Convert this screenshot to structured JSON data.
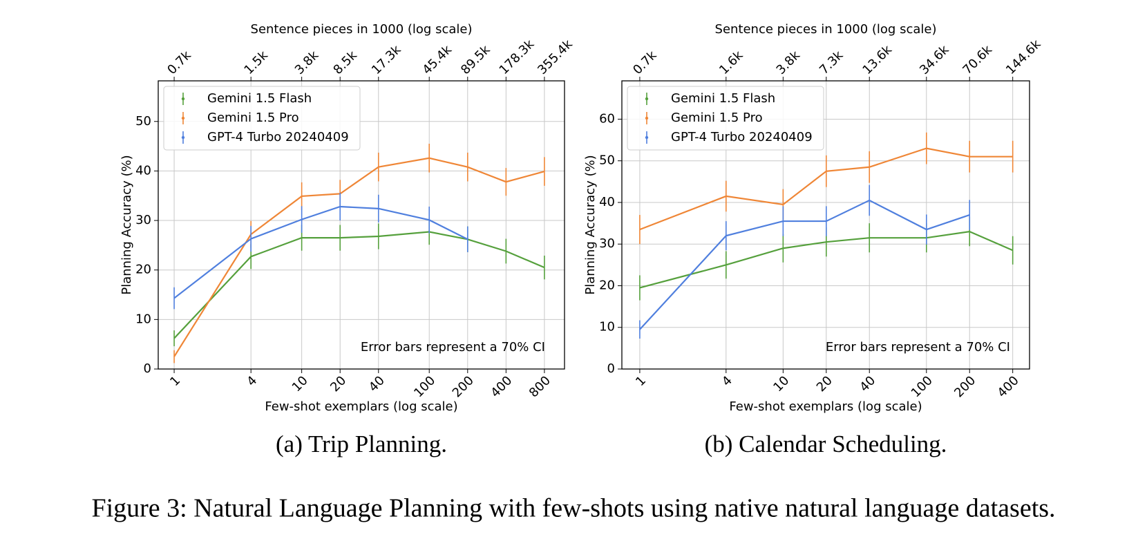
{
  "chart_data": [
    {
      "type": "line",
      "caption": "(a) Trip Planning.",
      "xlabel": "Few-shot exemplars (log scale)",
      "ylabel": "Planning Accuracy (%)",
      "x2label": "Sentence pieces in 1000 (log scale)",
      "annotation": "Error bars represent a 70% CI",
      "xscale": "log",
      "grid": true,
      "legend": "upper left",
      "x": [
        1,
        4,
        10,
        20,
        40,
        100,
        200,
        400,
        800
      ],
      "xlim": [
        0.75,
        1150
      ],
      "xticks": [
        1,
        4,
        10,
        20,
        40,
        100,
        200,
        400,
        800
      ],
      "x2ticks": [
        {
          "value": 1,
          "label": "0.7k"
        },
        {
          "value": 4,
          "label": "1.5k"
        },
        {
          "value": 10,
          "label": "3.8k"
        },
        {
          "value": 20,
          "label": "8.5k"
        },
        {
          "value": 40,
          "label": "17.3k"
        },
        {
          "value": 100,
          "label": "45.4k"
        },
        {
          "value": 200,
          "label": "89.5k"
        },
        {
          "value": 400,
          "label": "178.3k"
        },
        {
          "value": 800,
          "label": "355.4k"
        }
      ],
      "ylim": [
        0,
        58.2
      ],
      "yticks": [
        0,
        10,
        20,
        30,
        40,
        50
      ],
      "series": [
        {
          "name": "Gemini 1.5 Flash",
          "color": "#55a03c",
          "values": [
            6.2,
            22.7,
            26.5,
            26.5,
            26.8,
            27.7,
            26.2,
            23.8,
            20.5
          ],
          "errors": [
            1.6,
            2.5,
            2.6,
            2.6,
            2.6,
            2.6,
            2.6,
            2.5,
            2.4
          ]
        },
        {
          "name": "Gemini 1.5 Pro",
          "color": "#ef8636",
          "values": [
            2.5,
            27.2,
            34.9,
            35.4,
            40.8,
            42.6,
            40.8,
            37.8,
            39.9
          ],
          "errors": [
            1.3,
            2.7,
            2.8,
            2.8,
            2.9,
            2.9,
            2.9,
            2.8,
            2.9
          ]
        },
        {
          "name": "GPT-4 Turbo 20240409",
          "color": "#4f7fde",
          "values": [
            14.3,
            26.3,
            30.2,
            32.8,
            32.4,
            30.1,
            26.2,
            null,
            null
          ],
          "errors": [
            2.2,
            2.6,
            2.7,
            2.8,
            2.8,
            2.7,
            2.6,
            null,
            null
          ]
        }
      ]
    },
    {
      "type": "line",
      "caption": "(b) Calendar Scheduling.",
      "xlabel": "Few-shot exemplars (log scale)",
      "ylabel": "Planning Accuracy (%)",
      "x2label": "Sentence pieces in 1000 (log scale)",
      "annotation": "Error bars represent a 70% CI",
      "xscale": "log",
      "grid": true,
      "legend": "upper left",
      "x": [
        1,
        4,
        10,
        20,
        40,
        100,
        200,
        400
      ],
      "xlim": [
        0.75,
        524
      ],
      "xticks": [
        1,
        4,
        10,
        20,
        40,
        100,
        200,
        400
      ],
      "x2ticks": [
        {
          "value": 1,
          "label": "0.7k"
        },
        {
          "value": 4,
          "label": "1.6k"
        },
        {
          "value": 10,
          "label": "3.8k"
        },
        {
          "value": 20,
          "label": "7.3k"
        },
        {
          "value": 40,
          "label": "13.6k"
        },
        {
          "value": 100,
          "label": "34.6k"
        },
        {
          "value": 200,
          "label": "70.6k"
        },
        {
          "value": 400,
          "label": "144.6k"
        }
      ],
      "ylim": [
        0,
        69.2
      ],
      "yticks": [
        0,
        10,
        20,
        30,
        40,
        50,
        60
      ],
      "series": [
        {
          "name": "Gemini 1.5 Flash",
          "color": "#55a03c",
          "values": [
            19.5,
            25,
            29,
            30.5,
            31.5,
            31.5,
            33,
            28.5
          ],
          "errors": [
            3,
            3.3,
            3.4,
            3.5,
            3.5,
            3.5,
            3.5,
            3.4
          ]
        },
        {
          "name": "Gemini 1.5 Pro",
          "color": "#ef8636",
          "values": [
            33.5,
            41.5,
            39.5,
            47.5,
            48.5,
            53,
            51,
            51
          ],
          "errors": [
            3.5,
            3.7,
            3.7,
            3.8,
            3.8,
            3.8,
            3.8,
            3.8
          ]
        },
        {
          "name": "GPT-4 Turbo 20240409",
          "color": "#4f7fde",
          "values": [
            9.5,
            32,
            35.5,
            35.5,
            40.5,
            33.5,
            37,
            null
          ],
          "errors": [
            2.2,
            3.5,
            3.6,
            3.6,
            3.7,
            3.6,
            3.6,
            null
          ]
        }
      ]
    }
  ],
  "caption": "Figure 3: Natural Language Planning with few-shots using native natural language datasets."
}
